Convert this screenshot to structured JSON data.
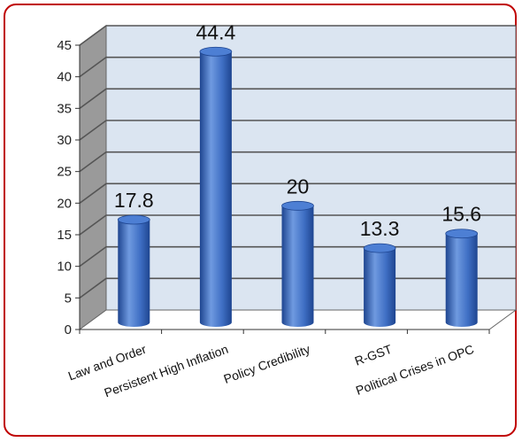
{
  "colors": {
    "frame": "#c00000",
    "plot_back": "#dbe5f1",
    "plot_side": "#9a9a9a",
    "plot_floor": "#ffffff",
    "grid": "#555555",
    "bar_light": "#6f9ae0",
    "bar_mid": "#3f6fc4",
    "bar_dark": "#1e4590",
    "bar_top": "#4d7fd4"
  },
  "chart_data": {
    "type": "bar",
    "title": "",
    "xlabel": "",
    "ylabel": "",
    "categories": [
      "Law and Order",
      "Persistent High Inflation",
      "Policy Credibility",
      "R-GST",
      "Political Crises in OPC"
    ],
    "values": [
      17.8,
      44.4,
      20,
      13.3,
      15.6
    ],
    "data_labels": [
      "17.8",
      "44.4",
      "20",
      "13.3",
      "15.6"
    ],
    "ylim": [
      0,
      45
    ],
    "yticks": [
      "0",
      "5",
      "10",
      "15",
      "20",
      "25",
      "30",
      "35",
      "40",
      "45"
    ],
    "grid": true,
    "legend": "none"
  }
}
